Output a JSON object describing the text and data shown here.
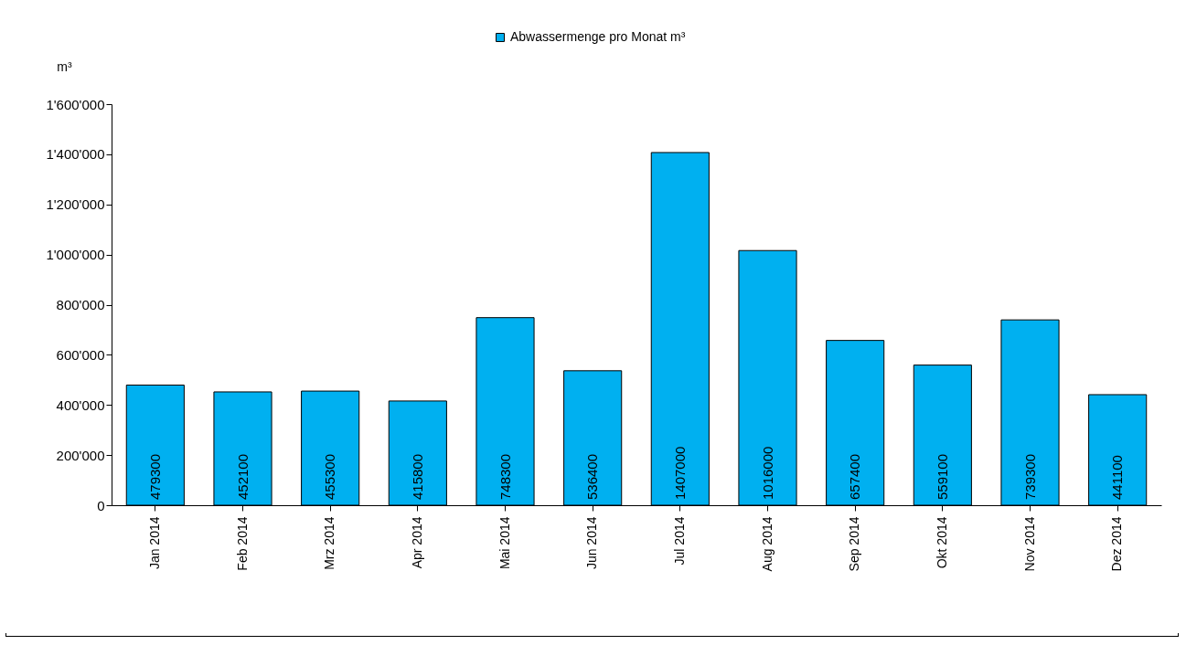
{
  "chart_data": {
    "type": "bar",
    "ylabel": "m³",
    "categories": [
      "Jan 2014",
      "Feb 2014",
      "Mrz 2014",
      "Apr 2014",
      "Mai 2014",
      "Jun 2014",
      "Jul 2014",
      "Aug 2014",
      "Sep 2014",
      "Okt 2014",
      "Nov 2014",
      "Dez 2014"
    ],
    "series": [
      {
        "name": "Abwassermenge pro Monat m³",
        "color": "#00b0f0",
        "values": [
          479300,
          452100,
          455300,
          415800,
          748300,
          536400,
          1407000,
          1016000,
          657400,
          559100,
          739300,
          441100
        ]
      }
    ],
    "ylim": [
      0,
      1600000
    ],
    "yticks": [
      0,
      {
        "value": 200000,
        "label": "200'000"
      },
      {
        "value": 400000,
        "label": "400'000"
      },
      {
        "value": 600000,
        "label": "600'000"
      },
      {
        "value": 800000,
        "label": "800'000"
      },
      {
        "value": 1000000,
        "label": "1'000'000"
      },
      {
        "value": 1200000,
        "label": "1'200'000"
      },
      {
        "value": 1400000,
        "label": "1'400'000"
      },
      {
        "value": 1600000,
        "label": "1'600'000"
      }
    ],
    "data_labels": true,
    "legend": "top",
    "grid": false
  }
}
